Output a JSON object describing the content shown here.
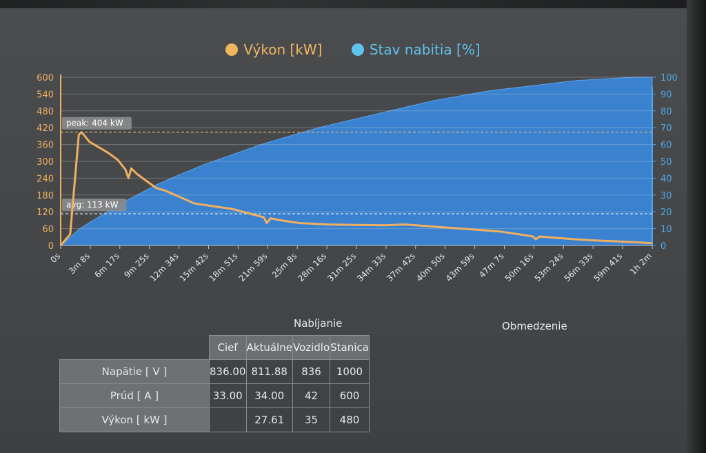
{
  "legend": [
    {
      "label": "Výkon [kW]",
      "color": "#f2b661"
    },
    {
      "label": "Stav nabitia [%]",
      "color": "#5fc3f0"
    }
  ],
  "chart_data": {
    "type": "line",
    "x_ticks": [
      "0s",
      "3m 8s",
      "6m 17s",
      "9m 25s",
      "12m 34s",
      "15m 42s",
      "18m 51s",
      "21m 59s",
      "25m 8s",
      "28m 16s",
      "31m 25s",
      "34m 33s",
      "37m 42s",
      "40m 50s",
      "43m 59s",
      "47m 7s",
      "50m 16s",
      "53m 24s",
      "56m 33s",
      "59m 41s",
      "1h 2m"
    ],
    "y_left_ticks": [
      "0",
      "60",
      "120",
      "180",
      "240",
      "300",
      "360",
      "420",
      "480",
      "540",
      "600"
    ],
    "y_right_ticks": [
      "0",
      "10",
      "20",
      "30",
      "40",
      "50",
      "60",
      "70",
      "80",
      "90",
      "100"
    ],
    "y_left_range": [
      0,
      600
    ],
    "y_right_range": [
      0,
      100
    ],
    "series": [
      {
        "name": "Výkon [kW]",
        "axis": "left",
        "color": "#f0b060",
        "x_min": [
          0,
          1,
          1.9,
          2.2,
          3,
          4,
          5,
          6,
          6.8,
          7.1,
          7.4,
          8,
          9,
          10,
          11,
          12,
          13,
          14,
          16,
          18,
          20,
          21.3,
          21.6,
          22,
          23,
          25,
          28,
          31,
          34,
          36,
          38,
          40,
          42,
          44,
          46,
          48,
          49.5,
          49.8,
          50.2,
          52,
          54,
          56,
          58,
          60,
          62
        ],
        "values": [
          0,
          40,
          395,
          404,
          370,
          350,
          330,
          305,
          270,
          240,
          275,
          255,
          230,
          205,
          195,
          180,
          165,
          150,
          140,
          130,
          112,
          100,
          80,
          97,
          90,
          80,
          75,
          73,
          72,
          75,
          70,
          65,
          60,
          55,
          50,
          40,
          32,
          22,
          32,
          27,
          22,
          18,
          15,
          12,
          8
        ]
      },
      {
        "name": "Stav nabitia [%]",
        "axis": "right",
        "color": "#3a86d6",
        "x_min": [
          0,
          2,
          4,
          6,
          8,
          10,
          12,
          15,
          18,
          21,
          24,
          27,
          30,
          33,
          36,
          39,
          42,
          45,
          48,
          51,
          54,
          57,
          60,
          62
        ],
        "values": [
          0,
          10,
          17,
          24,
          30,
          36,
          41,
          48,
          54,
          60,
          65,
          70,
          74,
          78,
          82,
          86,
          89,
          92,
          94,
          96,
          98,
          99,
          100,
          100
        ]
      }
    ],
    "annotations": [
      {
        "label": "peak: 404 kW",
        "y": 404,
        "axis": "left"
      },
      {
        "label": "avg: 113 kW",
        "y": 113,
        "axis": "left"
      }
    ],
    "x_max_min": 62,
    "grid": true
  },
  "table": {
    "group_charging": "Nabíjanie",
    "group_limits": "Obmedzenie",
    "headers": [
      "Cieľ",
      "Aktuálne",
      "Vozidlo",
      "Stanica"
    ],
    "rows": [
      {
        "label": "Napätie [ V ]",
        "cells": [
          "836.00",
          "811.88",
          "836",
          "1000"
        ]
      },
      {
        "label": "Prúd [ A ]",
        "cells": [
          "33.00",
          "34.00",
          "42",
          "600"
        ]
      },
      {
        "label": "Výkon [ kW ]",
        "cells": [
          "",
          "27.61",
          "35",
          "480"
        ]
      }
    ]
  }
}
